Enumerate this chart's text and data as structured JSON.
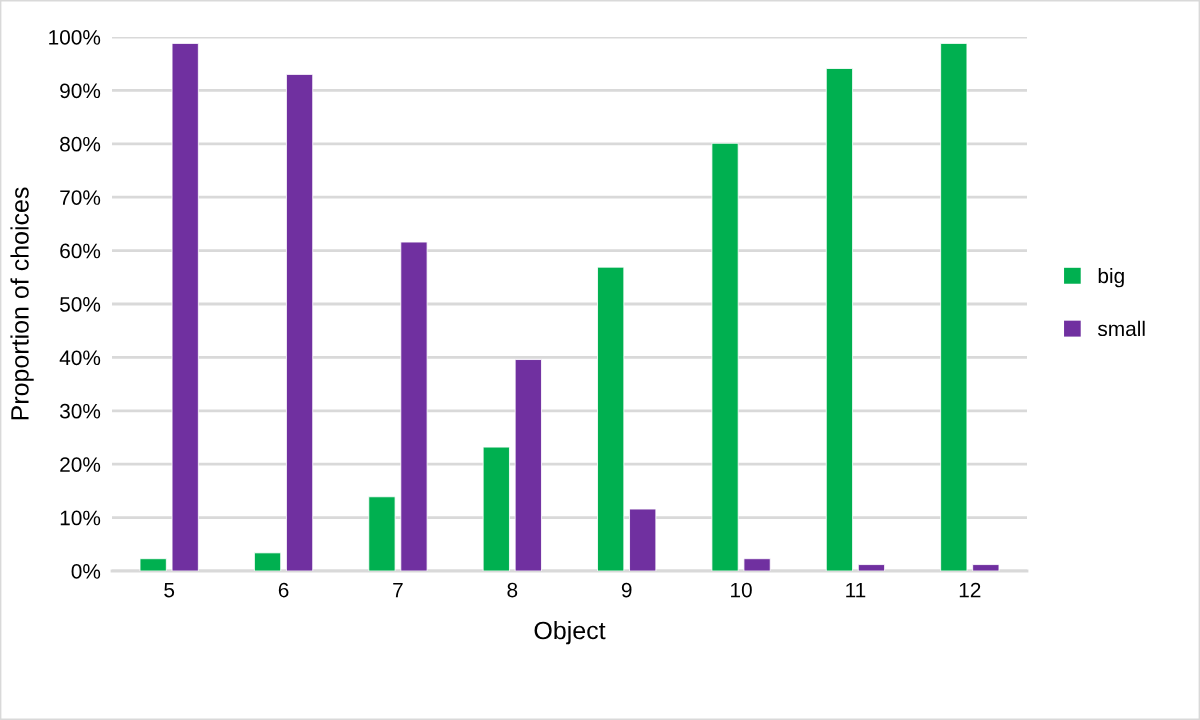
{
  "chart_data": {
    "type": "bar",
    "xlabel": "Object",
    "ylabel": "Proportion of choices",
    "categories": [
      "5",
      "6",
      "7",
      "8",
      "9",
      "10",
      "11",
      "12"
    ],
    "series": [
      {
        "name": "big",
        "color": "#00b050",
        "values": [
          2.3,
          3.4,
          13.9,
          23.2,
          56.9,
          80.1,
          94.1,
          98.8
        ]
      },
      {
        "name": "small",
        "color": "#7030a0",
        "values": [
          98.8,
          93.0,
          61.6,
          39.6,
          11.6,
          2.3,
          1.2,
          1.2
        ]
      }
    ],
    "ylim": [
      0,
      100
    ],
    "yticks": [
      {
        "value": 0,
        "label": "0%"
      },
      {
        "value": 10,
        "label": "10%"
      },
      {
        "value": 20,
        "label": "20%"
      },
      {
        "value": 30,
        "label": "30%"
      },
      {
        "value": 40,
        "label": "40%"
      },
      {
        "value": 50,
        "label": "50%"
      },
      {
        "value": 60,
        "label": "60%"
      },
      {
        "value": 70,
        "label": "70%"
      },
      {
        "value": 80,
        "label": "80%"
      },
      {
        "value": 90,
        "label": "90%"
      },
      {
        "value": 100,
        "label": "100%"
      }
    ],
    "grid": "y",
    "legend": "right"
  }
}
